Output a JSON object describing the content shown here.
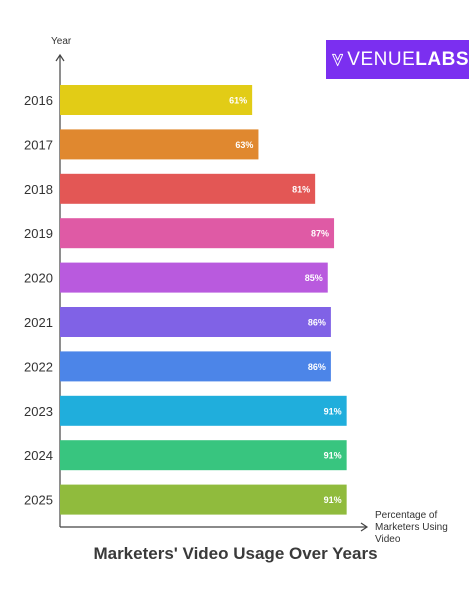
{
  "brand": {
    "name_part1": "VENUE",
    "name_part2": "LABS",
    "logo_color": "#7b2ff0"
  },
  "chart_data": {
    "type": "bar",
    "orientation": "horizontal",
    "title": "Marketers' Video Usage Over Years",
    "ylabel": "Year",
    "xlabel": "Percentage of Marketers Using Video",
    "xlim": [
      0,
      100
    ],
    "categories": [
      "2016",
      "2017",
      "2018",
      "2019",
      "2020",
      "2021",
      "2022",
      "2023",
      "2024",
      "2025"
    ],
    "values": [
      61,
      63,
      81,
      87,
      85,
      86,
      86,
      91,
      91,
      91
    ],
    "value_labels": [
      "61%",
      "63%",
      "81%",
      "87%",
      "85%",
      "86%",
      "86%",
      "91%",
      "91%",
      "91%"
    ],
    "colors": [
      "#e2cc16",
      "#e0882f",
      "#e35755",
      "#df5aa5",
      "#b95ade",
      "#8062e6",
      "#4c85e8",
      "#20aedc",
      "#38c57f",
      "#90bb3d"
    ],
    "grid": false,
    "legend": "none"
  }
}
